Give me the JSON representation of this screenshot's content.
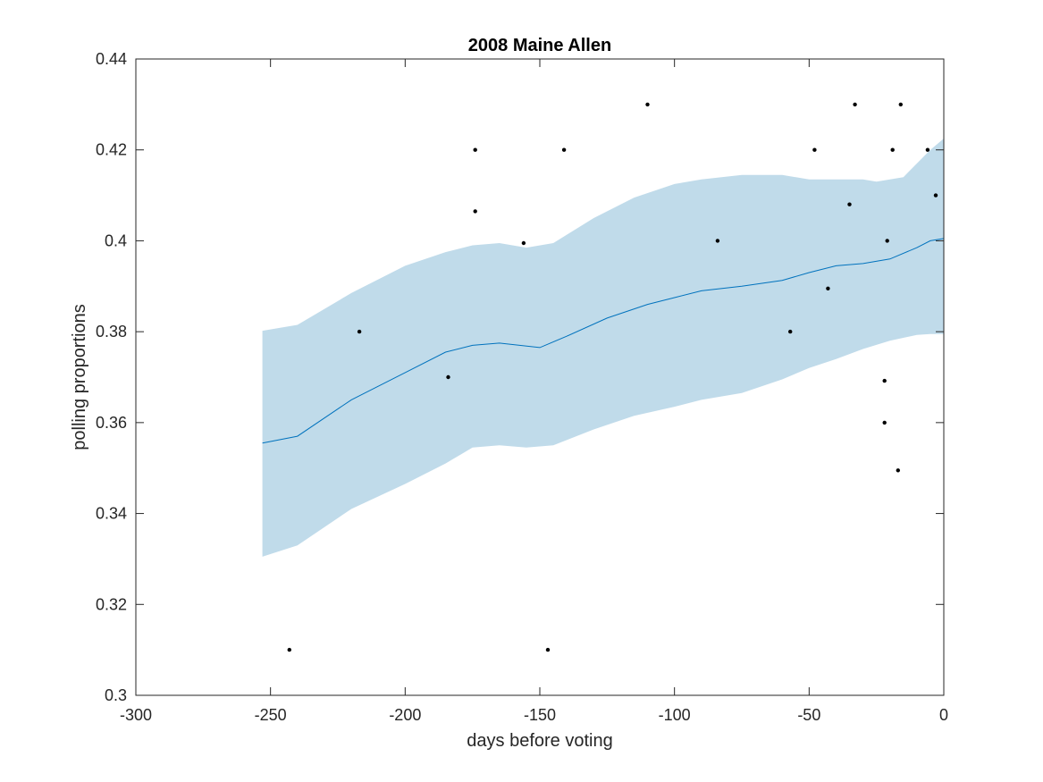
{
  "chart_data": {
    "type": "line",
    "title": "2008 Maine Allen",
    "xlabel": "days before voting",
    "ylabel": "polling proportions",
    "xlim": [
      -300,
      0
    ],
    "ylim": [
      0.3,
      0.44
    ],
    "xticks": [
      -300,
      -250,
      -200,
      -150,
      -100,
      -50,
      0
    ],
    "yticks": [
      0.3,
      0.32,
      0.34,
      0.36,
      0.38,
      0.4,
      0.42,
      0.44
    ],
    "xtick_labels": [
      "-300",
      "-250",
      "-200",
      "-150",
      "-100",
      "-50",
      "0"
    ],
    "ytick_labels": [
      "0.3",
      "0.32",
      "0.34",
      "0.36",
      "0.38",
      "0.4",
      "0.42",
      "0.44"
    ],
    "grid": false,
    "colors": {
      "band": "#c0dbea",
      "mean_line": "#0072bd",
      "points": "#000000",
      "axes": "#262626"
    },
    "mean": {
      "x": [
        -253,
        -240,
        -220,
        -200,
        -185,
        -175,
        -165,
        -150,
        -140,
        -125,
        -110,
        -100,
        -90,
        -75,
        -60,
        -50,
        -40,
        -30,
        -20,
        -10,
        -5,
        0
      ],
      "y": [
        0.3555,
        0.357,
        0.365,
        0.371,
        0.3755,
        0.377,
        0.3775,
        0.3765,
        0.379,
        0.383,
        0.386,
        0.3875,
        0.389,
        0.39,
        0.3913,
        0.393,
        0.3945,
        0.395,
        0.396,
        0.3985,
        0.4,
        0.4005
      ]
    },
    "band_upper": {
      "x": [
        -253,
        -240,
        -220,
        -200,
        -185,
        -175,
        -165,
        -155,
        -145,
        -130,
        -115,
        -100,
        -90,
        -75,
        -60,
        -50,
        -40,
        -30,
        -25,
        -15,
        -5,
        0
      ],
      "y": [
        0.3802,
        0.3815,
        0.3885,
        0.3945,
        0.3975,
        0.399,
        0.3995,
        0.3985,
        0.3995,
        0.405,
        0.4095,
        0.4125,
        0.4135,
        0.4145,
        0.4145,
        0.4135,
        0.4135,
        0.4135,
        0.413,
        0.414,
        0.42,
        0.4225
      ]
    },
    "band_lower": {
      "x": [
        -253,
        -240,
        -220,
        -200,
        -185,
        -175,
        -165,
        -155,
        -145,
        -130,
        -115,
        -100,
        -90,
        -75,
        -60,
        -50,
        -40,
        -30,
        -20,
        -10,
        -5,
        0
      ],
      "y": [
        0.3305,
        0.333,
        0.341,
        0.3465,
        0.351,
        0.3545,
        0.355,
        0.3545,
        0.355,
        0.3585,
        0.3615,
        0.3635,
        0.365,
        0.3665,
        0.3695,
        0.372,
        0.374,
        0.3762,
        0.378,
        0.3793,
        0.3795,
        0.3795
      ]
    },
    "points": {
      "x": [
        -243,
        -217,
        -184,
        -174,
        -174,
        -156,
        -147,
        -141,
        -110,
        -84,
        -57,
        -48,
        -43,
        -35,
        -33,
        -22,
        -22,
        -21,
        -19,
        -17,
        -16,
        -6,
        -3
      ],
      "y": [
        0.31,
        0.38,
        0.37,
        0.42,
        0.4065,
        0.3995,
        0.31,
        0.42,
        0.43,
        0.4,
        0.38,
        0.42,
        0.3895,
        0.408,
        0.43,
        0.3692,
        0.36,
        0.4,
        0.42,
        0.3495,
        0.43,
        0.42,
        0.41
      ]
    }
  }
}
